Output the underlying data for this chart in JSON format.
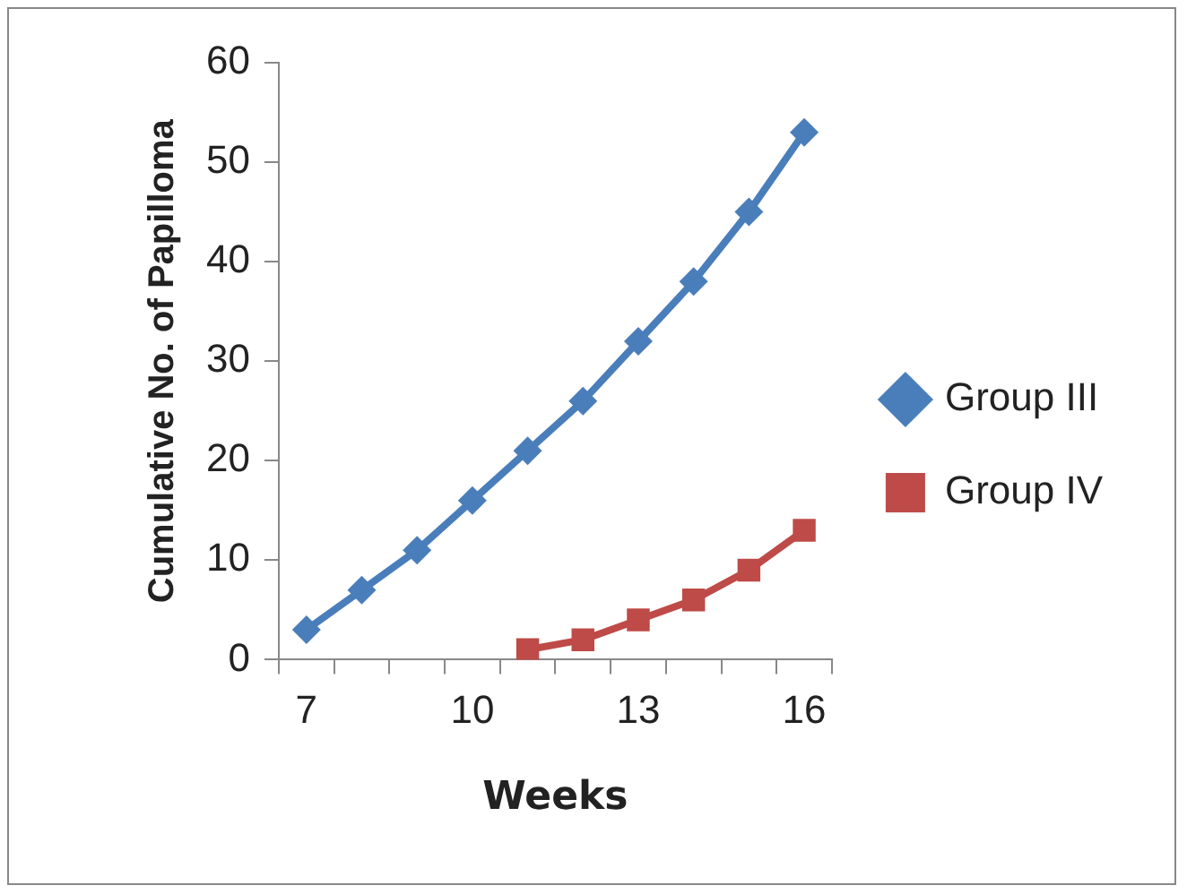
{
  "chart_data": {
    "type": "line",
    "xlabel": "Weeks",
    "ylabel": "Cumulative No. of Papilloma",
    "categories": [
      "7",
      null,
      null,
      "10",
      null,
      null,
      "13",
      null,
      null,
      "16"
    ],
    "series": [
      {
        "name": "Group III",
        "color": "#4a7ebb",
        "marker": "diamond",
        "values": [
          3,
          7,
          11,
          16,
          21,
          26,
          32,
          38,
          45,
          53
        ]
      },
      {
        "name": "Group IV",
        "color": "#be4b48",
        "marker": "square",
        "values": [
          null,
          null,
          null,
          null,
          1,
          2,
          4,
          6,
          9,
          13
        ]
      }
    ],
    "ylim": [
      0,
      60
    ],
    "yticks": [
      0,
      10,
      20,
      30,
      40,
      50,
      60
    ],
    "grid": false,
    "legend": "right",
    "line_style": "solid"
  }
}
